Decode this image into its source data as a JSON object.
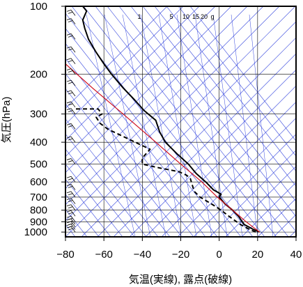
{
  "chart_data": {
    "type": "line",
    "subtype": "skew-T log-p sounding",
    "xlabel": "気温(実線), 露点(破線)",
    "ylabel": "気圧(hPa)",
    "xlim": [
      -80,
      40
    ],
    "ylim_hpa": [
      1050,
      100
    ],
    "y_scale": "log",
    "x_ticks": [
      -80,
      -60,
      -40,
      -20,
      0,
      20,
      40
    ],
    "x_tick_labels": [
      "−80",
      "−60",
      "−40",
      "−20",
      "0",
      "20",
      "40"
    ],
    "y_ticks": [
      100,
      200,
      300,
      400,
      500,
      600,
      700,
      800,
      900,
      1000
    ],
    "y_tick_labels": [
      "100",
      "200",
      "300",
      "400",
      "500",
      "600",
      "700",
      "800",
      "900",
      "1000"
    ],
    "mixing_ratio_labels": [
      "1",
      "5",
      "10",
      "15",
      "20",
      "g"
    ],
    "colors": {
      "temperature": "#000000",
      "dewpoint": "#000000",
      "parcel_path": "#d01020",
      "guide_lines": "#3344dd",
      "grid": "#000000"
    },
    "series": [
      {
        "name": "気温",
        "style": "solid",
        "points": [
          [
            21,
            1000
          ],
          [
            18,
            975
          ],
          [
            13,
            925
          ],
          [
            10,
            850
          ],
          [
            7,
            800
          ],
          [
            3,
            750
          ],
          [
            0,
            700
          ],
          [
            1,
            680
          ],
          [
            -3,
            650
          ],
          [
            -7,
            600
          ],
          [
            -12,
            550
          ],
          [
            -16,
            500
          ],
          [
            -22,
            450
          ],
          [
            -28,
            400
          ],
          [
            -31,
            360
          ],
          [
            -33,
            320
          ],
          [
            -39,
            290
          ],
          [
            -44,
            260
          ],
          [
            -50,
            230
          ],
          [
            -56,
            200
          ],
          [
            -60,
            180
          ],
          [
            -64,
            160
          ],
          [
            -68,
            140
          ],
          [
            -70,
            125
          ],
          [
            -71,
            115
          ],
          [
            -69,
            105
          ],
          [
            -71,
            100
          ]
        ]
      },
      {
        "name": "露点",
        "style": "dashed",
        "points": [
          [
            19,
            1000
          ],
          [
            16,
            975
          ],
          [
            11,
            925
          ],
          [
            5,
            850
          ],
          [
            1,
            800
          ],
          [
            -3,
            760
          ],
          [
            -10,
            700
          ],
          [
            -13,
            660
          ],
          [
            -14,
            620
          ],
          [
            -15,
            580
          ],
          [
            -17,
            560
          ],
          [
            -21,
            540
          ],
          [
            -31,
            520
          ],
          [
            -40,
            500
          ],
          [
            -40,
            470
          ],
          [
            -36,
            430
          ],
          [
            -52,
            370
          ],
          [
            -58,
            350
          ],
          [
            -62,
            330
          ],
          [
            -64,
            310
          ],
          [
            -61,
            300
          ],
          [
            -63,
            285
          ],
          [
            -75,
            285
          ]
        ]
      },
      {
        "name": "",
        "style": "solid-red",
        "points": [
          [
            21,
            1000
          ],
          [
            14,
            900
          ],
          [
            7,
            800
          ],
          [
            -1,
            700
          ],
          [
            -9,
            600
          ],
          [
            -20,
            500
          ],
          [
            -33,
            400
          ],
          [
            -50,
            300
          ],
          [
            -66,
            230
          ],
          [
            -80,
            180
          ]
        ]
      }
    ],
    "wind_barbs_hpa": [
      1000,
      975,
      950,
      925,
      900,
      850,
      800,
      750,
      700,
      650,
      600,
      500,
      400,
      350,
      300,
      280,
      250,
      225,
      200,
      180,
      160,
      140,
      120,
      110,
      100
    ]
  }
}
